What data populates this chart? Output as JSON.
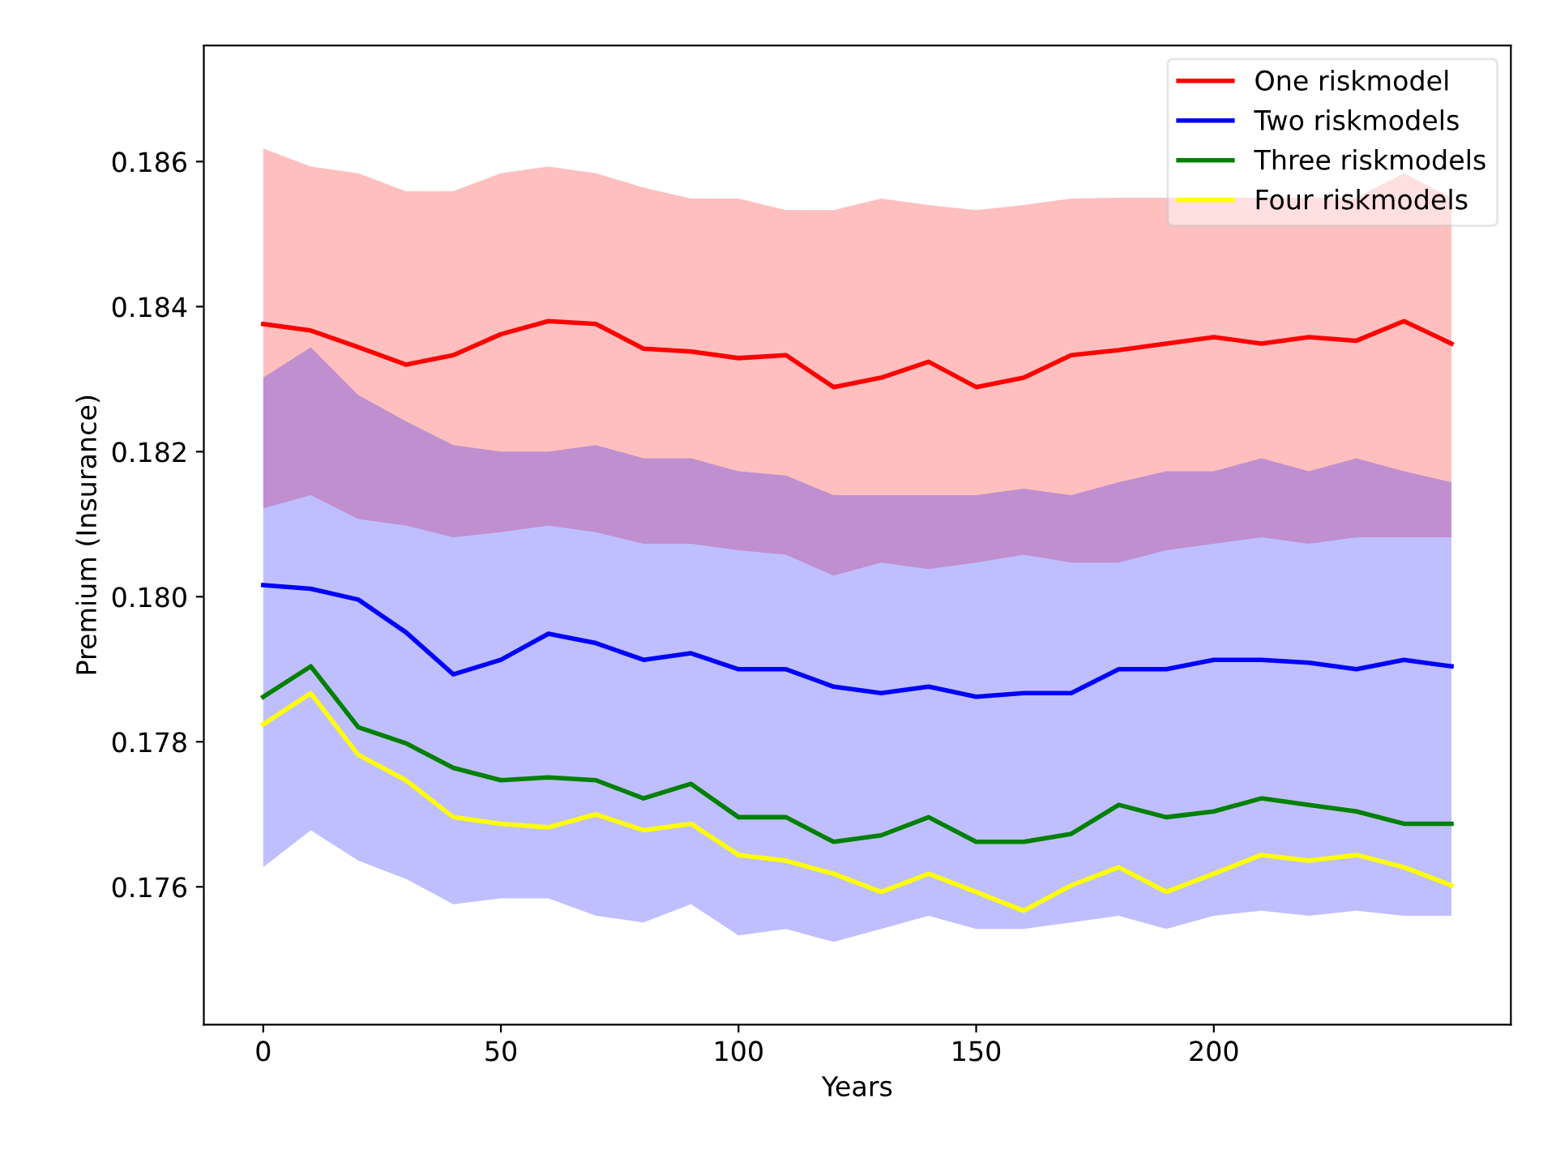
{
  "chart_data": {
    "type": "line",
    "xlabel": "Years",
    "ylabel": "Premium (Insurance)",
    "x": [
      0,
      10,
      20,
      30,
      40,
      50,
      60,
      70,
      80,
      90,
      100,
      110,
      120,
      130,
      140,
      150,
      160,
      170,
      180,
      190,
      200,
      210,
      220,
      230,
      240,
      250
    ],
    "series": [
      {
        "name": "One riskmodel",
        "color": "#ff0000",
        "values": [
          0.18376,
          0.18367,
          0.18344,
          0.1832,
          0.18333,
          0.18362,
          0.1838,
          0.18376,
          0.18342,
          0.18338,
          0.18329,
          0.18333,
          0.18289,
          0.18302,
          0.18324,
          0.18289,
          0.18302,
          0.18333,
          0.1834,
          0.18349,
          0.18358,
          0.18349,
          0.18358,
          0.18353,
          0.1838,
          0.18349
        ],
        "upper": [
          0.18618,
          0.18593,
          0.18584,
          0.18559,
          0.18559,
          0.18584,
          0.18593,
          0.18584,
          0.18564,
          0.18549,
          0.18549,
          0.18533,
          0.18533,
          0.18549,
          0.1854,
          0.18533,
          0.1854,
          0.18549,
          0.1855,
          0.1855,
          0.1855,
          0.1855,
          0.1855,
          0.1855,
          0.18584,
          0.1855
        ],
        "lower": [
          0.18122,
          0.1814,
          0.18107,
          0.18098,
          0.18082,
          0.18089,
          0.18098,
          0.18089,
          0.18073,
          0.18073,
          0.18064,
          0.18058,
          0.18029,
          0.18047,
          0.18038,
          0.18047,
          0.18058,
          0.18047,
          0.18047,
          0.18064,
          0.18073,
          0.18082,
          0.18073,
          0.18082,
          0.18082,
          0.18082
        ]
      },
      {
        "name": "Two riskmodels",
        "color": "#0000ff",
        "values": [
          0.18016,
          0.18011,
          0.17996,
          0.17951,
          0.17893,
          0.17913,
          0.17949,
          0.17936,
          0.17913,
          0.17922,
          0.179,
          0.179,
          0.17876,
          0.17867,
          0.17876,
          0.17862,
          0.17867,
          0.17867,
          0.179,
          0.179,
          0.17913,
          0.17913,
          0.17909,
          0.179,
          0.17913,
          0.17904
        ],
        "upper": [
          0.18302,
          0.18344,
          0.18278,
          0.18242,
          0.18209,
          0.182,
          0.182,
          0.18209,
          0.18191,
          0.18191,
          0.18173,
          0.18167,
          0.1814,
          0.1814,
          0.1814,
          0.1814,
          0.18149,
          0.1814,
          0.18158,
          0.18173,
          0.18173,
          0.18191,
          0.18173,
          0.18191,
          0.18173,
          0.18158
        ],
        "lower": [
          0.17627,
          0.17678,
          0.17636,
          0.17611,
          0.17576,
          0.17584,
          0.17584,
          0.1756,
          0.17551,
          0.17576,
          0.17533,
          0.17542,
          0.17524,
          0.17542,
          0.1756,
          0.17542,
          0.17542,
          0.17551,
          0.1756,
          0.17542,
          0.1756,
          0.17567,
          0.1756,
          0.17567,
          0.1756,
          0.1756
        ]
      },
      {
        "name": "Three riskmodels",
        "color": "#008000",
        "values": [
          0.17862,
          0.17904,
          0.1782,
          0.17798,
          0.17764,
          0.17747,
          0.17751,
          0.17747,
          0.17722,
          0.17742,
          0.17696,
          0.17696,
          0.17662,
          0.17671,
          0.17696,
          0.17662,
          0.17662,
          0.17673,
          0.17713,
          0.17696,
          0.17704,
          0.17722,
          0.17713,
          0.17704,
          0.17687,
          0.17687
        ]
      },
      {
        "name": "Four riskmodels",
        "color": "#ffff00",
        "values": [
          0.17824,
          0.17867,
          0.17782,
          0.17747,
          0.17696,
          0.17687,
          0.17682,
          0.177,
          0.17678,
          0.17687,
          0.17644,
          0.17636,
          0.17618,
          0.17593,
          0.17618,
          0.17593,
          0.17567,
          0.17602,
          0.17627,
          0.17593,
          0.17618,
          0.17644,
          0.17636,
          0.17644,
          0.17627,
          0.17602
        ]
      }
    ],
    "xlim": [
      -12.5,
      262.5
    ],
    "xticks": [
      0,
      50,
      100,
      150,
      200
    ],
    "ylim": [
      0.1741,
      0.1876
    ],
    "yticks": [
      0.176,
      0.178,
      {
        "value": 0.18,
        "label": "0.180"
      },
      0.182,
      0.184,
      0.186
    ],
    "grid": false,
    "legend": "top right",
    "marker": "none",
    "line_style": "solid"
  }
}
